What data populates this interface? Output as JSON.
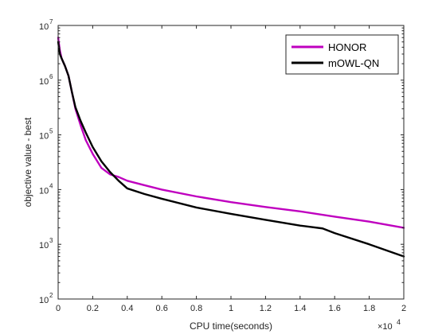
{
  "chart_data": {
    "type": "line",
    "xlabel": "CPU time(seconds)",
    "ylabel": "objective value - best",
    "x_exponent_label": "×10",
    "x_exponent_power": "4",
    "xlim": [
      0,
      20000
    ],
    "ylim": [
      100,
      10000000
    ],
    "y_scale": "log",
    "x_ticks": [
      0,
      2000,
      4000,
      6000,
      8000,
      10000,
      12000,
      14000,
      16000,
      18000,
      20000
    ],
    "x_tick_labels": [
      "0",
      "0.2",
      "0.4",
      "0.6",
      "0.8",
      "1",
      "1.2",
      "1.4",
      "1.6",
      "1.8",
      "2"
    ],
    "y_ticks": [
      100,
      1000,
      10000,
      100000,
      1000000,
      10000000
    ],
    "y_tick_base": "10",
    "y_tick_powers": [
      "2",
      "3",
      "4",
      "5",
      "6",
      "7"
    ],
    "grid": false,
    "legend_position": "top-right",
    "series": [
      {
        "name": "HONOR",
        "color": "#bf00bf",
        "x": [
          0,
          100,
          200,
          400,
          600,
          800,
          1000,
          1300,
          1600,
          2000,
          2500,
          3000,
          3500,
          4000,
          5000,
          6000,
          8000,
          10000,
          12000,
          14000,
          16000,
          18000,
          20000
        ],
        "y": [
          6000000,
          3500000,
          2500000,
          1800000,
          1200000,
          600000,
          300000,
          150000,
          80000,
          45000,
          25000,
          19000,
          17000,
          14500,
          12000,
          10000,
          7500,
          5900,
          4800,
          4000,
          3200,
          2600,
          2000
        ]
      },
      {
        "name": "mOWL-QN",
        "color": "#000000",
        "x": [
          0,
          100,
          200,
          400,
          600,
          800,
          1000,
          1300,
          1600,
          2000,
          2500,
          3000,
          3500,
          4000,
          5000,
          6000,
          8000,
          10000,
          12000,
          14000,
          15300,
          16000,
          18000,
          20000
        ],
        "y": [
          5000000,
          3000000,
          2500000,
          1800000,
          1200000,
          600000,
          320000,
          180000,
          110000,
          60000,
          33000,
          21000,
          14500,
          10500,
          8300,
          6800,
          4700,
          3600,
          2800,
          2200,
          1950,
          1600,
          1000,
          600
        ]
      }
    ]
  }
}
